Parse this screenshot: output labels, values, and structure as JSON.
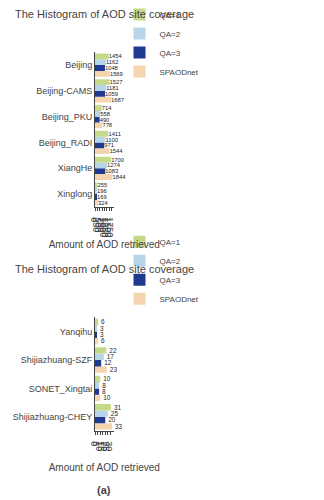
{
  "chart_data": [
    {
      "type": "bar",
      "orientation": "horizontal",
      "title": "The Histogram of AOD site coverage",
      "xlabel": "Amount of AOD retrieved",
      "categories": [
        "Xinglong",
        "XiangHe",
        "Beijing_RADI",
        "Beijing_PKU",
        "Beijing-CAMS",
        "Beijing"
      ],
      "series": [
        {
          "name": "QA=1",
          "color": "#c5d98b",
          "values": [
            255,
            1700,
            1411,
            714,
            1527,
            1454
          ]
        },
        {
          "name": "QA=2",
          "color": "#b8d4e8",
          "values": [
            196,
            1274,
            1100,
            558,
            1181,
            1162
          ]
        },
        {
          "name": "QA=3",
          "color": "#1f3a8f",
          "values": [
            169,
            1083,
            971,
            490,
            1059,
            1048
          ]
        },
        {
          "name": "SPAODnet",
          "color": "#f5d5b0",
          "values": [
            324,
            1844,
            1544,
            778,
            1687,
            1569
          ]
        }
      ],
      "xlim": [
        0,
        1950
      ],
      "xticks": [
        0,
        250,
        500,
        750,
        1000,
        1250,
        1500,
        1750
      ],
      "data_labels": true,
      "grid": false,
      "legend": "top"
    },
    {
      "type": "bar",
      "orientation": "horizontal",
      "title": "The Histogram of AOD site coverage",
      "xlabel": "Amount of AOD retrieved",
      "categories": [
        "Shijiazhuang-CHEY",
        "SONET_Xingtai",
        "Shijiazhuang-SZF",
        "Yanqihu"
      ],
      "series": [
        {
          "name": "QA=1",
          "color": "#c5d98b",
          "values": [
            31,
            10,
            22,
            6
          ]
        },
        {
          "name": "QA=2",
          "color": "#b8d4e8",
          "values": [
            25,
            8,
            17,
            3
          ]
        },
        {
          "name": "QA=3",
          "color": "#1f3a8f",
          "values": [
            20,
            8,
            12,
            3
          ]
        },
        {
          "name": "SPAODnet",
          "color": "#f5d5b0",
          "values": [
            33,
            10,
            23,
            6
          ]
        }
      ],
      "xlim": [
        0,
        36
      ],
      "xticks": [
        0,
        5,
        10,
        15,
        20,
        25,
        30
      ],
      "data_labels": true,
      "grid": false,
      "legend": "top",
      "annotation": "(a)"
    }
  ]
}
